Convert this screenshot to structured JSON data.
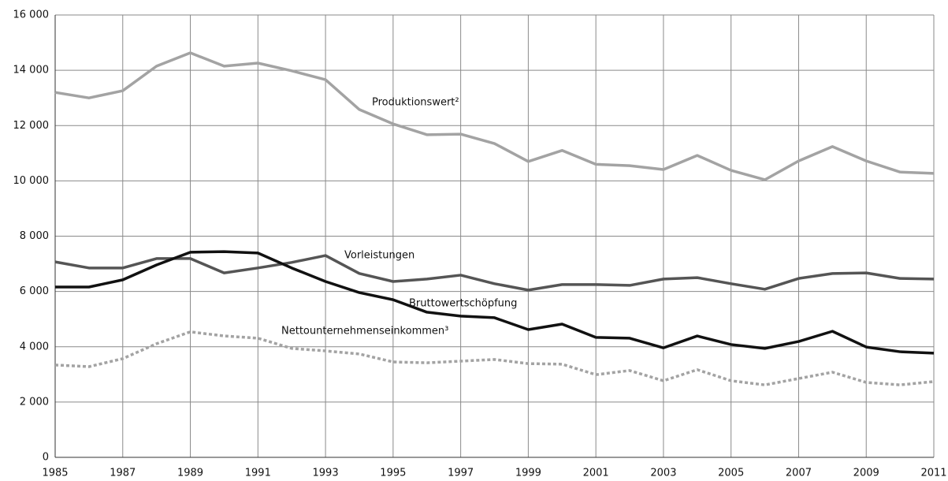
{
  "chart_data": {
    "type": "line",
    "x": [
      1985,
      1986,
      1987,
      1988,
      1989,
      1990,
      1991,
      1992,
      1993,
      1994,
      1995,
      1996,
      1997,
      1998,
      1999,
      2000,
      2001,
      2002,
      2003,
      2004,
      2005,
      2006,
      2007,
      2008,
      2009,
      2010,
      2011
    ],
    "series": [
      {
        "name": "Produktionswert²",
        "color": "#a3a3a3",
        "dashed": false,
        "values": [
          13200,
          13000,
          13260,
          14150,
          14630,
          14150,
          14260,
          13980,
          13660,
          12580,
          12060,
          11670,
          11690,
          11350,
          10700,
          11100,
          10600,
          10550,
          10410,
          10920,
          10380,
          10040,
          10720,
          11240,
          10720,
          10320,
          10270
        ]
      },
      {
        "name": "Vorleistungen",
        "color": "#555555",
        "dashed": false,
        "values": [
          7070,
          6850,
          6850,
          7190,
          7190,
          6670,
          6850,
          7050,
          7300,
          6650,
          6360,
          6450,
          6590,
          6280,
          6050,
          6250,
          6250,
          6220,
          6450,
          6500,
          6280,
          6080,
          6470,
          6650,
          6670,
          6470,
          6450
        ]
      },
      {
        "name": "Bruttowertschöpfung",
        "color": "#111111",
        "dashed": false,
        "values": [
          6160,
          6160,
          6420,
          6960,
          7420,
          7440,
          7390,
          6850,
          6360,
          5960,
          5700,
          5250,
          5110,
          5050,
          4620,
          4820,
          4340,
          4310,
          3960,
          4390,
          4080,
          3940,
          4190,
          4560,
          3990,
          3820,
          3770
        ]
      },
      {
        "name": "Nettounternehmenseinkommen³",
        "color": "#a3a3a3",
        "dashed": true,
        "values": [
          3340,
          3280,
          3570,
          4110,
          4540,
          4390,
          4310,
          3940,
          3850,
          3740,
          3450,
          3420,
          3480,
          3540,
          3390,
          3370,
          2990,
          3140,
          2770,
          3170,
          2770,
          2620,
          2850,
          3080,
          2710,
          2620,
          2740
        ]
      }
    ],
    "xlim": [
      1985,
      2011
    ],
    "xticks": [
      1985,
      1987,
      1989,
      1991,
      1993,
      1995,
      1997,
      1999,
      2001,
      2003,
      2005,
      2007,
      2009,
      2011
    ],
    "ylim": [
      0,
      16000
    ],
    "yticks": [
      0,
      {
        "value": 2000,
        "label": "2 000"
      },
      {
        "value": 4000,
        "label": "4 000"
      },
      {
        "value": 6000,
        "label": "6 000"
      },
      {
        "value": 8000,
        "label": "8 000"
      },
      {
        "value": 10000,
        "label": "10 000"
      },
      {
        "value": 12000,
        "label": "12 000"
      },
      {
        "value": 14000,
        "label": "14 000"
      },
      {
        "value": 16000,
        "label": "16 000"
      }
    ],
    "grid": true
  }
}
